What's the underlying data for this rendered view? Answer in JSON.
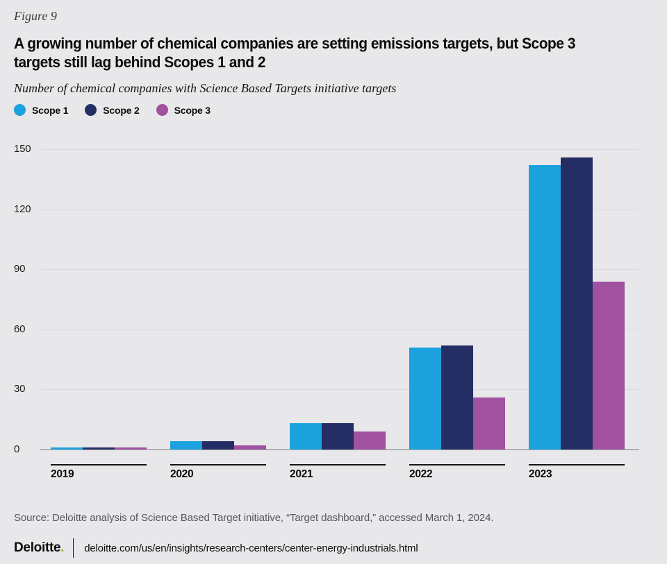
{
  "figure_label": "Figure 9",
  "header": {
    "title_lines": [
      "A growing number of chemical companies are setting emissions targets, but Scope 3",
      "targets still lag behind Scopes 1 and 2"
    ],
    "subtitle": "Number of chemical companies with Science Based Targets initiative targets"
  },
  "legend": [
    {
      "label": "Scope 1",
      "color": "#1BA1DC"
    },
    {
      "label": "Scope 2",
      "color": "#242D64"
    },
    {
      "label": "Scope 3",
      "color": "#A0519F"
    }
  ],
  "chart_data": {
    "type": "bar",
    "title": "A growing number of chemical companies are setting emissions targets, but Scope 3 targets still lag behind Scopes 1 and 2",
    "subtitle": "Number of chemical companies with Science Based Targets initiative targets",
    "categories": [
      "2019",
      "2020",
      "2021",
      "2022",
      "2023"
    ],
    "series": [
      {
        "name": "Scope 1",
        "color": "#1BA1DC",
        "values": [
          1,
          4,
          13,
          51,
          142
        ]
      },
      {
        "name": "Scope 2",
        "color": "#242D64",
        "values": [
          1,
          4,
          13,
          52,
          146
        ]
      },
      {
        "name": "Scope 3",
        "color": "#A0519F",
        "values": [
          1,
          2,
          9,
          26,
          84
        ]
      }
    ],
    "xlabel": "",
    "ylabel": "",
    "ylim": [
      0,
      150
    ],
    "yticks": [
      0,
      30,
      60,
      90,
      120,
      150
    ],
    "grid": true,
    "legend_position": "top-left"
  },
  "source": "Source: Deloitte analysis of Science Based Target initiative, “Target dashboard,” accessed March 1, 2024.",
  "footer": {
    "logo_text": "Deloitte",
    "logo_dot": ".",
    "url": "deloitte.com/us/en/insights/research-centers/center-energy-industrials.html"
  },
  "colors": {
    "background": "#E8E8EA",
    "gridline": "#D9D9DC",
    "baseline": "#AFAFB4",
    "accent_green": "#86BC25",
    "source_text": "#55565B"
  }
}
